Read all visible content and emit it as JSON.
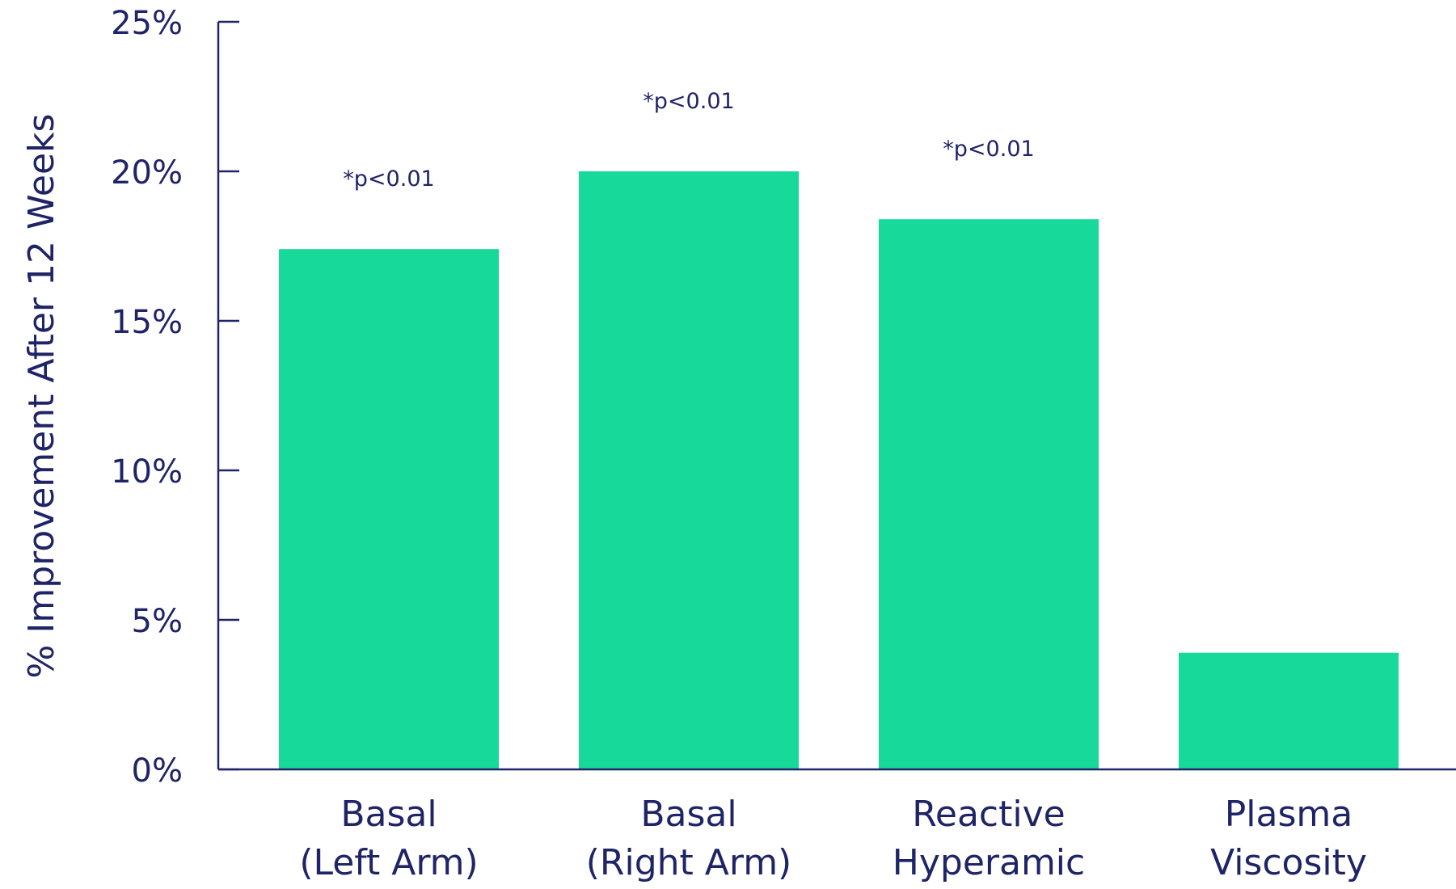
{
  "chart_data": {
    "type": "bar",
    "title": "",
    "xlabel": "",
    "ylabel": "% Improvement After 12 Weeks",
    "ylim": [
      0,
      25
    ],
    "yticks": [
      0,
      5,
      10,
      15,
      20,
      25
    ],
    "ytick_labels": [
      "0%",
      "5%",
      "10%",
      "15%",
      "20%",
      "25%"
    ],
    "categories": [
      [
        "Basal",
        "(Left Arm)"
      ],
      [
        "Basal",
        "(Right Arm)"
      ],
      [
        "Reactive",
        "Hyperamic"
      ],
      [
        "Plasma",
        "Viscosity"
      ]
    ],
    "values": [
      17.4,
      20.0,
      18.4,
      3.9
    ],
    "annotations": [
      "*p<0.01",
      "*p<0.01",
      "*p<0.01",
      ""
    ],
    "grid": false,
    "legend": "none",
    "colors": {
      "bar": "#17d99a",
      "axis": "#1f2466",
      "text": "#1f2466"
    }
  }
}
